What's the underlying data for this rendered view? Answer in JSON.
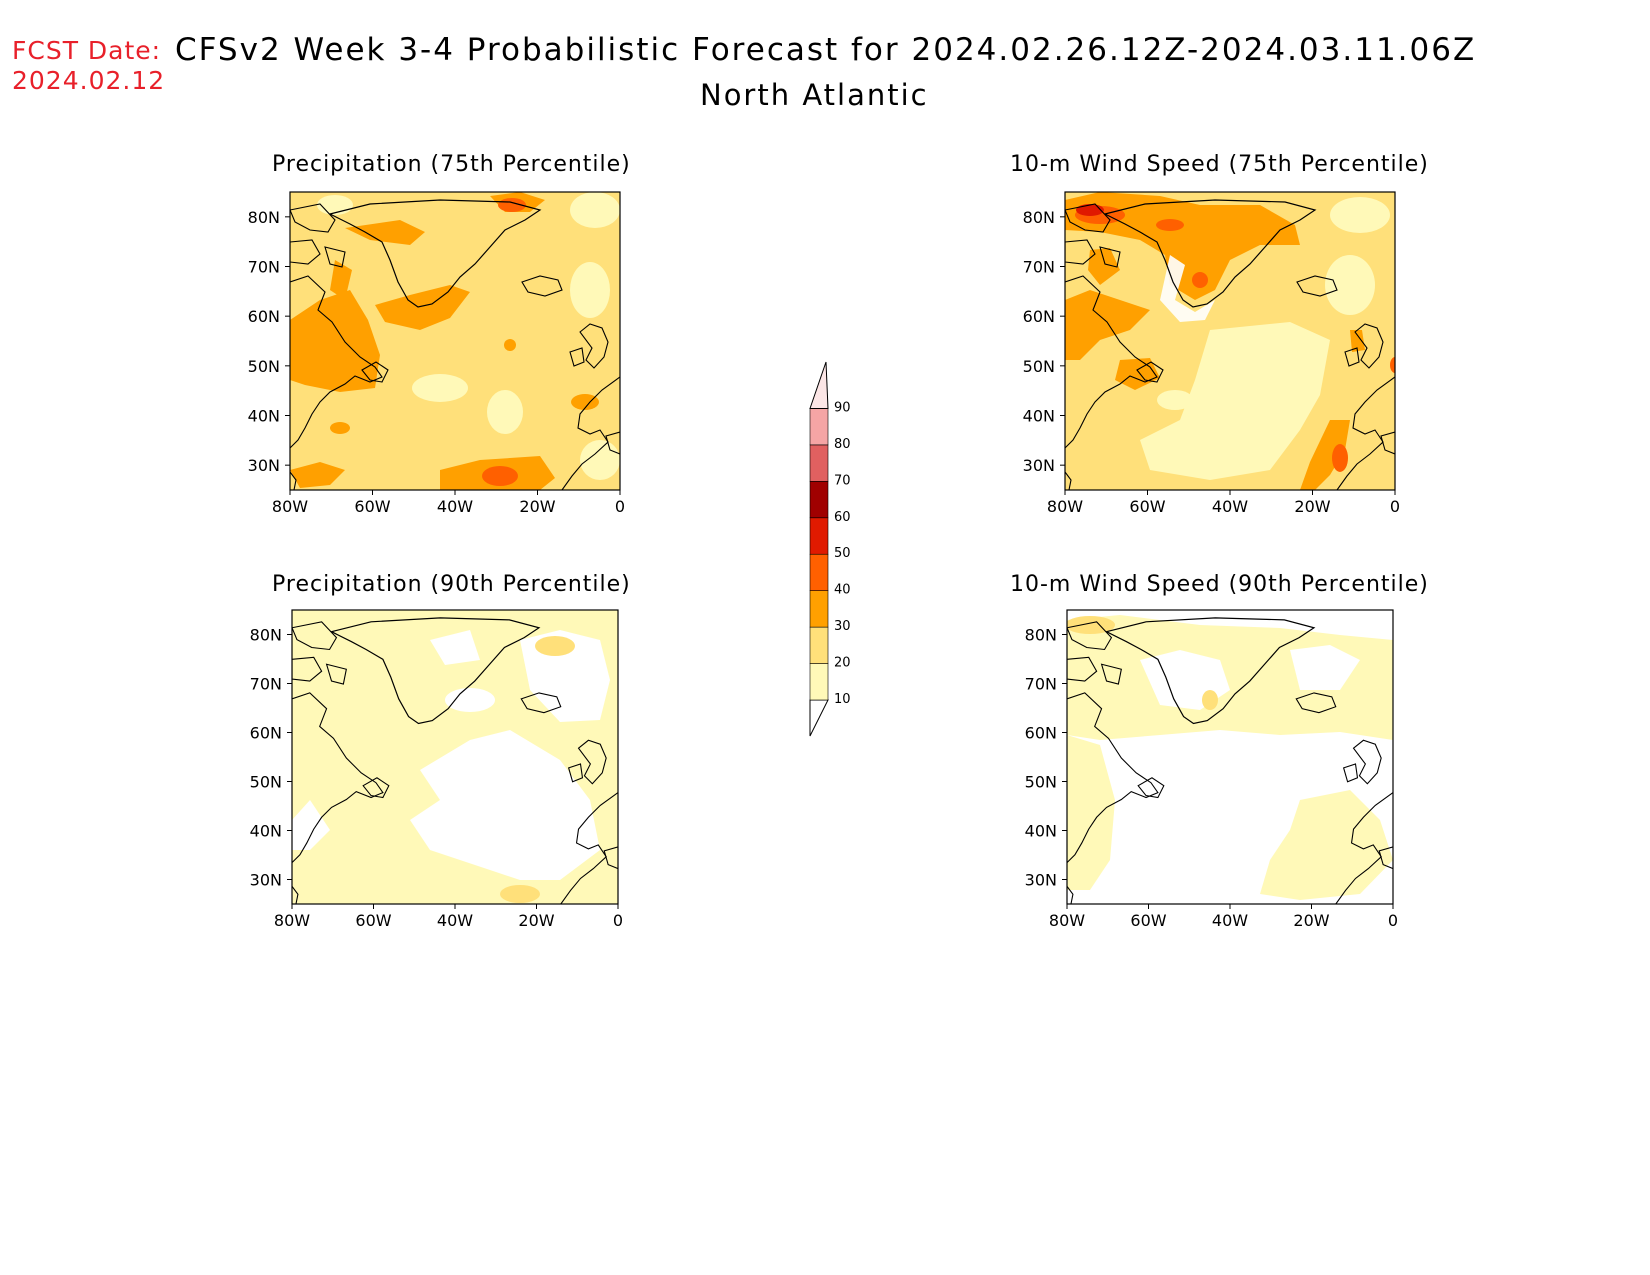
{
  "header": {
    "fcst_label": "FCST Date:",
    "fcst_date": "2024.02.12",
    "title": "CFSv2 Week 3-4 Probabilistic Forecast for 2024.02.26.12Z-2024.03.11.06Z",
    "subtitle": "North Atlantic"
  },
  "panels": [
    {
      "title": "Precipitation (75th Percentile)"
    },
    {
      "title": "10-m Wind Speed (75th Percentile)"
    },
    {
      "title": "Precipitation (90th Percentile)"
    },
    {
      "title": "10-m Wind Speed (90th Percentile)"
    }
  ],
  "axes": {
    "lat_labels": [
      "80N",
      "70N",
      "60N",
      "50N",
      "40N",
      "30N"
    ],
    "lon_labels": [
      "80W",
      "60W",
      "40W",
      "20W",
      "0"
    ]
  },
  "colorbar": {
    "levels": [
      "10",
      "20",
      "30",
      "40",
      "50",
      "60",
      "70",
      "80",
      "90"
    ],
    "colors": [
      "#fff9b8",
      "#ffe07a",
      "#ffa000",
      "#ff6000",
      "#e01a00",
      "#a00000",
      "#e06060",
      "#f5a5a5",
      "#fce6e6"
    ]
  }
}
